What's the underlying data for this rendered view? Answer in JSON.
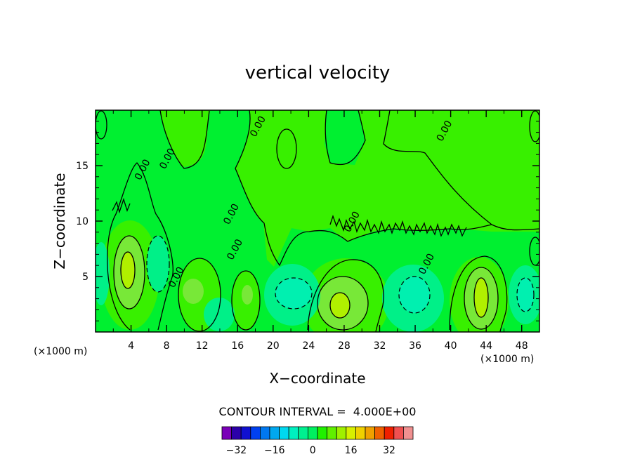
{
  "chart_data": {
    "type": "contour",
    "title": "vertical velocity",
    "xlabel": "X−coordinate",
    "ylabel": "Z−coordinate",
    "x_unit": "(×1000 m)",
    "y_unit": "(×1000 m)",
    "xlim": [
      0,
      50
    ],
    "ylim": [
      0,
      20
    ],
    "x_ticks": [
      4,
      8,
      12,
      16,
      20,
      24,
      28,
      32,
      36,
      40,
      44,
      48
    ],
    "x_tick_labels": [
      "4",
      "8",
      "12",
      "16",
      "20",
      "24",
      "28",
      "32",
      "36",
      "40",
      "44",
      "48"
    ],
    "y_ticks": [
      5,
      10,
      15
    ],
    "y_tick_labels": [
      "5",
      "10",
      "15"
    ],
    "contour_interval_text": "CONTOUR INTERVAL =  4.000E+00",
    "contour_interval": 4,
    "contour_labels": [
      "0.00",
      "0.00",
      "0.00",
      "0.00",
      "0.00",
      "0.00",
      "0.00",
      "0.00",
      "0.00"
    ],
    "colorbar": {
      "levels": [
        -36,
        -32,
        -28,
        -24,
        -20,
        -16,
        -12,
        -8,
        -4,
        0,
        4,
        8,
        12,
        16,
        20,
        24,
        28,
        32,
        36,
        40
      ],
      "colors": [
        "#7a00b8",
        "#2b00a8",
        "#1010d0",
        "#0040f0",
        "#0078f0",
        "#00a8f0",
        "#00d8f0",
        "#00f0c0",
        "#00f090",
        "#00f060",
        "#20f000",
        "#60f000",
        "#a0f000",
        "#d8f000",
        "#f0d000",
        "#f0a000",
        "#f06000",
        "#f02000",
        "#f05050",
        "#f09090"
      ],
      "tick_values": [
        -32,
        -16,
        0,
        16,
        32
      ],
      "tick_labels": [
        "−32",
        "−16",
        "0",
        "16",
        "32"
      ]
    },
    "field_colors": {
      "zero_band": "#00f030",
      "pos_low": "#38f000",
      "pos_mid": "#78e838",
      "pos_high": "#b0f000",
      "neg_low": "#00f088",
      "neg_mid": "#00f0b0"
    },
    "features": [
      {
        "kind": "updraft",
        "x": 3.6,
        "z": 5.4,
        "peak_band": "pos_high"
      },
      {
        "kind": "updraft",
        "x": 27.8,
        "z": 2.4,
        "peak_band": "pos_high"
      },
      {
        "kind": "updraft",
        "x": 43.6,
        "z": 2.8,
        "peak_band": "pos_high"
      },
      {
        "kind": "updraft",
        "x": 12.2,
        "z": 3.8,
        "peak_band": "pos_mid"
      },
      {
        "kind": "updraft",
        "x": 16.6,
        "z": 3.5,
        "peak_band": "pos_mid"
      },
      {
        "kind": "downdraft",
        "x": 7.2,
        "z": 6.5,
        "peak_band": "neg_low"
      },
      {
        "kind": "downdraft",
        "x": 14.0,
        "z": 2.4,
        "peak_band": "neg_low"
      },
      {
        "kind": "downdraft",
        "x": 22.0,
        "z": 3.6,
        "peak_band": "neg_mid"
      },
      {
        "kind": "downdraft",
        "x": 36.0,
        "z": 3.4,
        "peak_band": "neg_mid"
      },
      {
        "kind": "downdraft",
        "x": 48.0,
        "z": 3.3,
        "peak_band": "neg_mid"
      }
    ]
  }
}
